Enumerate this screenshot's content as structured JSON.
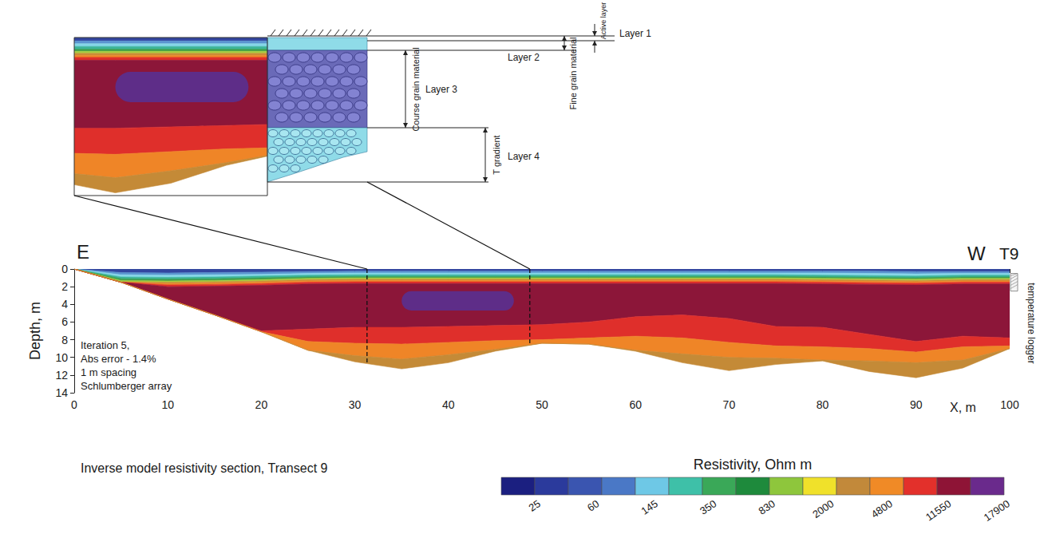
{
  "chart_data": {
    "type": "resistivity_section",
    "title": "Inverse model resistivity section, Transect 9",
    "x_label": "X, m",
    "y_label": "Depth, m",
    "xlim": [
      0,
      100
    ],
    "xticks": [
      0,
      10,
      20,
      30,
      40,
      50,
      60,
      70,
      80,
      90,
      100
    ],
    "ylim": [
      0,
      14
    ],
    "yticks": [
      0,
      2,
      4,
      6,
      8,
      10,
      12,
      14
    ],
    "grid": false,
    "x": [
      0,
      5,
      10,
      15,
      20,
      25,
      30,
      35,
      40,
      45,
      50,
      55,
      60,
      65,
      70,
      75,
      80,
      85,
      90,
      95,
      100
    ],
    "section_bottom": [
      0,
      1.5,
      3.4,
      5.2,
      7.1,
      9.2,
      10.5,
      11.3,
      10.6,
      9.3,
      8.4,
      8.5,
      9.3,
      10.6,
      11.5,
      10.8,
      10.4,
      11.6,
      12.3,
      11.2,
      9.0
    ],
    "layers": [
      {
        "color": "#3346a0",
        "base": [
          0.3,
          0.4,
          0.45,
          0.4,
          0.35,
          0.3,
          0.25,
          0.25,
          0.25,
          0.25,
          0.25,
          0.25,
          0.25,
          0.25,
          0.25,
          0.25,
          0.25,
          0.25,
          0.3,
          0.3,
          0.3
        ]
      },
      {
        "color": "#5a95d0",
        "base": [
          0.55,
          0.65,
          0.7,
          0.65,
          0.6,
          0.5,
          0.45,
          0.45,
          0.45,
          0.45,
          0.45,
          0.45,
          0.45,
          0.45,
          0.45,
          0.45,
          0.45,
          0.5,
          0.55,
          0.5,
          0.5
        ]
      },
      {
        "color": "#86d6e8",
        "base": [
          0.8,
          0.9,
          0.95,
          0.9,
          0.8,
          0.7,
          0.65,
          0.65,
          0.65,
          0.65,
          0.65,
          0.65,
          0.65,
          0.65,
          0.65,
          0.65,
          0.7,
          0.75,
          0.8,
          0.7,
          0.7
        ]
      },
      {
        "color": "#3bb59a",
        "base": [
          1.0,
          1.1,
          1.15,
          1.1,
          1.0,
          0.9,
          0.85,
          0.85,
          0.85,
          0.85,
          0.85,
          0.85,
          0.85,
          0.85,
          0.85,
          0.85,
          0.9,
          0.95,
          1.0,
          0.9,
          0.9
        ]
      },
      {
        "color": "#3d9e4d",
        "base": [
          1.2,
          1.3,
          1.35,
          1.3,
          1.2,
          1.05,
          1.0,
          1.0,
          1.0,
          1.0,
          1.0,
          1.0,
          1.0,
          1.0,
          1.0,
          1.0,
          1.05,
          1.1,
          1.15,
          1.05,
          1.05
        ]
      },
      {
        "color": "#a6cc3e",
        "base": [
          1.35,
          1.45,
          1.5,
          1.45,
          1.35,
          1.2,
          1.15,
          1.15,
          1.15,
          1.15,
          1.15,
          1.15,
          1.15,
          1.15,
          1.15,
          1.15,
          1.2,
          1.25,
          1.3,
          1.2,
          1.2
        ]
      },
      {
        "color": "#c98f38",
        "base": [
          1.5,
          1.6,
          1.65,
          1.6,
          1.5,
          1.35,
          1.3,
          1.3,
          1.3,
          1.3,
          1.3,
          1.3,
          1.3,
          1.3,
          1.3,
          1.3,
          1.35,
          1.4,
          1.45,
          1.35,
          1.35
        ]
      },
      {
        "color": "#ef8527",
        "base": [
          1.65,
          1.75,
          1.8,
          1.75,
          1.65,
          1.5,
          1.45,
          1.45,
          1.45,
          1.45,
          1.45,
          1.45,
          1.45,
          1.45,
          1.45,
          1.45,
          1.5,
          1.55,
          1.6,
          1.5,
          1.5
        ]
      },
      {
        "color": "#df2f2b",
        "base": [
          1.85,
          1.95,
          2.0,
          1.95,
          1.85,
          1.7,
          1.65,
          1.65,
          1.65,
          1.65,
          1.65,
          1.65,
          1.65,
          1.65,
          1.65,
          1.65,
          1.7,
          1.75,
          1.8,
          1.7,
          1.7
        ]
      },
      {
        "color": "#8c1639",
        "base": [
          7.0,
          7.0,
          7.0,
          7.0,
          7.0,
          6.8,
          6.6,
          6.6,
          6.5,
          6.4,
          6.3,
          6.0,
          5.4,
          5.2,
          5.6,
          6.5,
          6.6,
          7.4,
          8.2,
          7.6,
          7.8
        ]
      },
      {
        "color": "#df2f2b",
        "base": [
          8.5,
          8.5,
          8.5,
          8.4,
          8.3,
          8.2,
          8.4,
          8.5,
          8.3,
          8.1,
          8.0,
          7.8,
          7.6,
          7.8,
          8.3,
          8.7,
          8.8,
          9.0,
          9.4,
          8.8,
          8.7
        ]
      },
      {
        "color": "#ef8527",
        "base": [
          10.0,
          10.0,
          10.0,
          9.8,
          9.6,
          9.5,
          9.8,
          10.2,
          9.7,
          9.1,
          8.4,
          8.6,
          9.2,
          9.6,
          10.0,
          10.1,
          10.3,
          10.4,
          10.6,
          10.3,
          9.0
        ]
      },
      {
        "color": "#c48a37",
        "base": [
          14,
          14,
          14,
          14,
          14,
          14,
          14,
          14,
          14,
          14,
          14,
          14,
          14,
          14,
          14,
          14,
          14,
          14,
          14,
          14,
          14
        ]
      }
    ],
    "lenses": [
      {
        "color": "#5e2d88",
        "x": [
          35,
          47
        ],
        "depth": [
          2.5,
          4.7
        ]
      }
    ],
    "direction_labels": {
      "left": "E",
      "right": "W"
    },
    "borehole": {
      "label": "T9",
      "note": "temperature logger",
      "x": 100,
      "depth": [
        0.5,
        2.5
      ]
    },
    "notes": [
      "Iteration 5,",
      "Abs error - 1.4%",
      "1 m spacing",
      "Schlumberger array"
    ],
    "colorbar": {
      "title": "Resistivity, Ohm m",
      "colors": [
        "#1b1f80",
        "#2b3a9c",
        "#3a55b0",
        "#4a78c6",
        "#6ec8e6",
        "#3ec0a8",
        "#3aa858",
        "#1e8a3c",
        "#8ec63c",
        "#f0e12a",
        "#c2893a",
        "#f08a26",
        "#e3302b",
        "#8e1436",
        "#6a2a8c"
      ],
      "ticks": [
        25,
        60,
        145,
        350,
        830,
        2000,
        4800,
        11550,
        17900
      ]
    },
    "inset": {
      "xlim": [
        31.3,
        48.7
      ],
      "ylim": [
        0,
        11.5
      ],
      "tick_labels": false,
      "layers": [
        "Layer 1",
        "Layer 2",
        "Layer 3",
        "Layer 4"
      ],
      "intervals": [
        "Active layer",
        "Fine grain material",
        "Course grain material",
        "T gradient"
      ]
    }
  }
}
